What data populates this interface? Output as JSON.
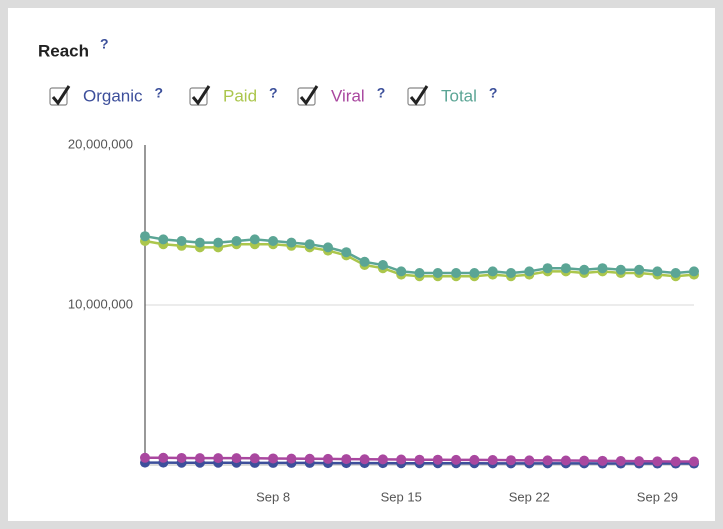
{
  "chart_data": {
    "type": "line",
    "title": "Reach",
    "help_label": "?",
    "categories": [
      null,
      null,
      null,
      null,
      null,
      null,
      null,
      "Sep 8",
      null,
      null,
      null,
      null,
      null,
      null,
      "Sep 15",
      null,
      null,
      null,
      null,
      null,
      null,
      "Sep 22",
      null,
      null,
      null,
      null,
      null,
      null,
      "Sep 29",
      null,
      null
    ],
    "series": [
      {
        "name": "Organic",
        "color": "#3d4f9b",
        "values": [
          150000,
          150000,
          140000,
          140000,
          140000,
          140000,
          130000,
          130000,
          130000,
          130000,
          120000,
          120000,
          120000,
          120000,
          110000,
          110000,
          110000,
          110000,
          110000,
          100000,
          100000,
          100000,
          100000,
          100000,
          100000,
          90000,
          90000,
          90000,
          90000,
          90000,
          90000
        ]
      },
      {
        "name": "Paid",
        "color": "#abc64c",
        "values": [
          14000000,
          13800000,
          13700000,
          13600000,
          13600000,
          13800000,
          13800000,
          13800000,
          13700000,
          13600000,
          13400000,
          13100000,
          12500000,
          12300000,
          11900000,
          11800000,
          11800000,
          11800000,
          11800000,
          11900000,
          11800000,
          11900000,
          12100000,
          12100000,
          12000000,
          12100000,
          12000000,
          12000000,
          11900000,
          11800000,
          11900000
        ]
      },
      {
        "name": "Viral",
        "color": "#a9479f",
        "values": [
          450000,
          450000,
          440000,
          430000,
          430000,
          430000,
          420000,
          410000,
          400000,
          390000,
          380000,
          370000,
          360000,
          350000,
          340000,
          330000,
          330000,
          320000,
          320000,
          310000,
          300000,
          290000,
          290000,
          280000,
          270000,
          260000,
          250000,
          240000,
          230000,
          220000,
          220000
        ]
      },
      {
        "name": "Total",
        "color": "#5ba595",
        "values": [
          14300000,
          14100000,
          14000000,
          13900000,
          13900000,
          14000000,
          14100000,
          14000000,
          13900000,
          13800000,
          13600000,
          13300000,
          12700000,
          12500000,
          12100000,
          12000000,
          12000000,
          12000000,
          12000000,
          12100000,
          12000000,
          12100000,
          12300000,
          12300000,
          12200000,
          12300000,
          12200000,
          12200000,
          12100000,
          12000000,
          12100000
        ]
      }
    ],
    "ylim": [
      0,
      20000000
    ],
    "yticks": [
      {
        "value": 10000000,
        "label": "10,000,000"
      },
      {
        "value": 20000000,
        "label": "20,000,000"
      }
    ],
    "grid": true
  }
}
